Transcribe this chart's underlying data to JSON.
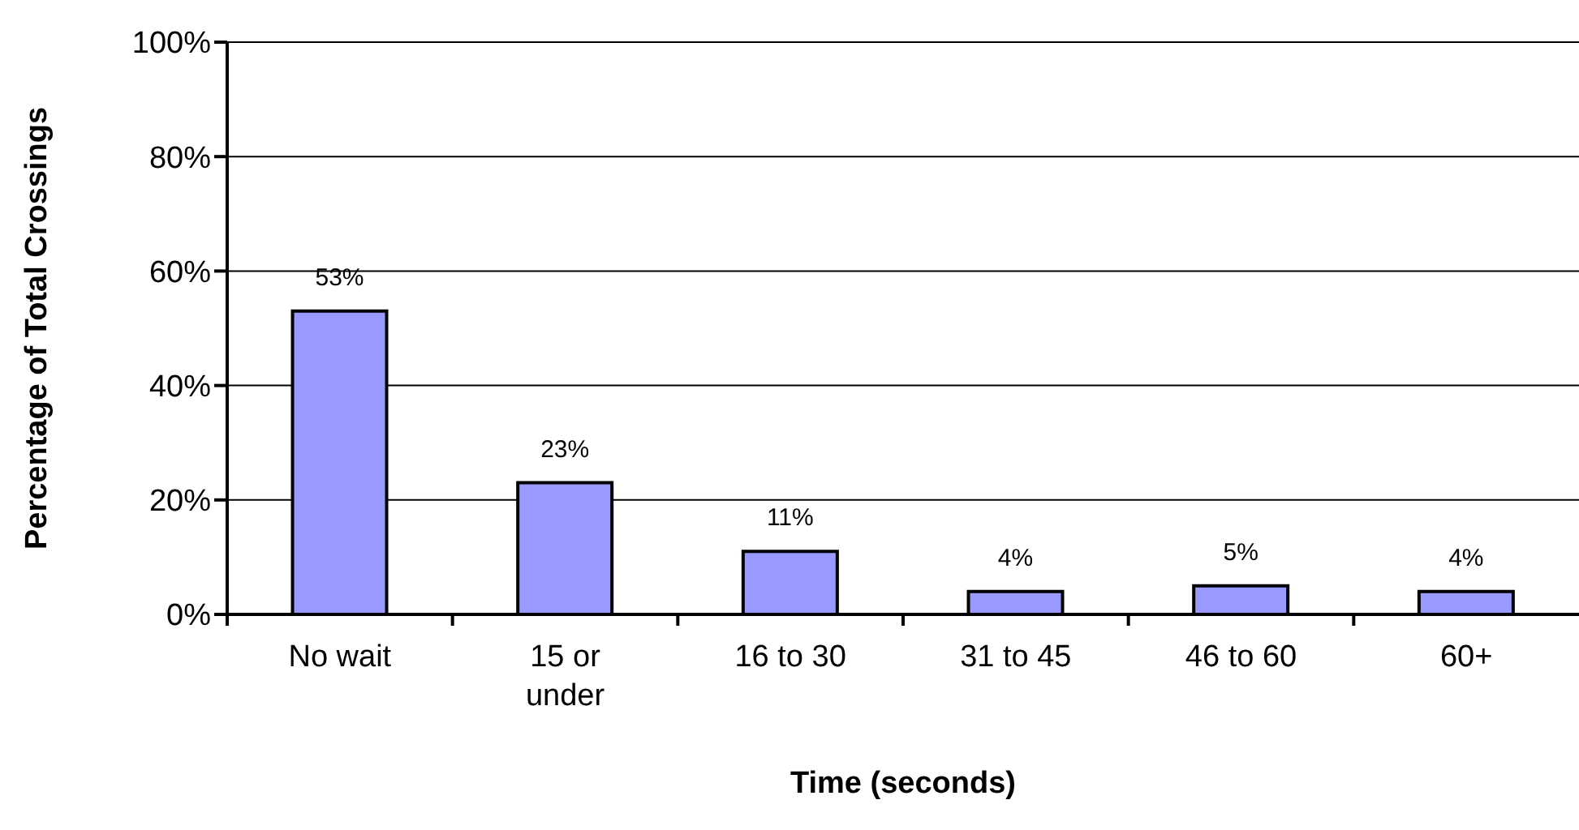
{
  "chart_data": {
    "type": "bar",
    "xlabel": "Time (seconds)",
    "ylabel": "Percentage of Total Crossings",
    "categories": [
      "No wait",
      "15 or under",
      "16 to 30",
      "31 to 45",
      "46 to 60",
      "60+"
    ],
    "values": [
      53,
      23,
      11,
      4,
      5,
      4
    ],
    "value_labels": [
      "53%",
      "23%",
      "11%",
      "4%",
      "5%",
      "4%"
    ],
    "color": "#9999ff",
    "ylim": [
      0,
      100
    ],
    "yticks": [
      {
        "value": 0,
        "label": "0%"
      },
      {
        "value": 20,
        "label": "20%"
      },
      {
        "value": 40,
        "label": "40%"
      },
      {
        "value": 60,
        "label": "60%"
      },
      {
        "value": 80,
        "label": "80%"
      },
      {
        "value": 100,
        "label": "100%"
      }
    ],
    "grid": "y",
    "legend": false
  }
}
